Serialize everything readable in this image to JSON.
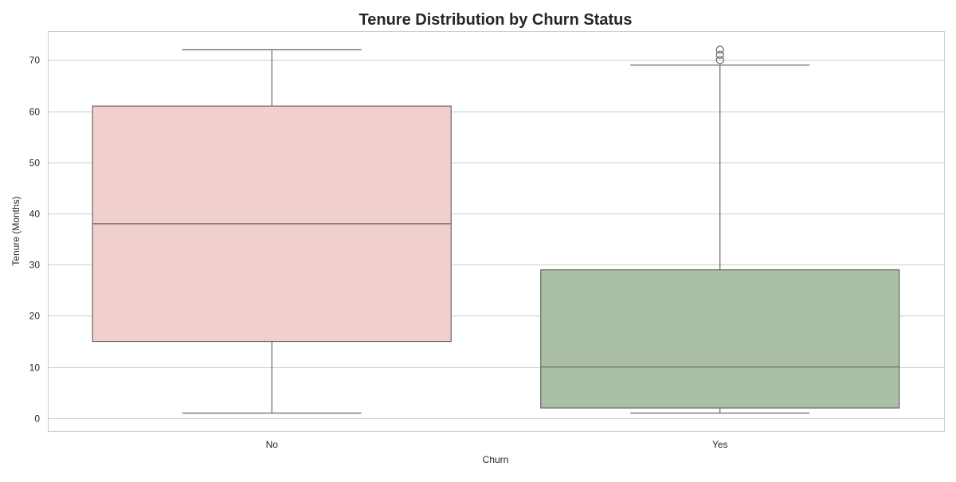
{
  "chart_data": {
    "type": "box",
    "title": "Tenure Distribution by Churn Status",
    "xlabel": "Churn",
    "ylabel": "Tenure (Months)",
    "categories": [
      "No",
      "Yes"
    ],
    "ylim": [
      -2.5,
      75.5
    ],
    "yticks": [
      0,
      10,
      20,
      30,
      40,
      50,
      60,
      70
    ],
    "grid": true,
    "boxes": [
      {
        "category": "No",
        "whisker_low": 1,
        "q1": 15,
        "median": 38,
        "q3": 61,
        "whisker_high": 72,
        "outliers": [],
        "color": "#f1cfcf"
      },
      {
        "category": "Yes",
        "whisker_low": 1,
        "q1": 2,
        "median": 10,
        "q3": 29,
        "whisker_high": 69,
        "outliers": [
          70,
          71,
          72
        ],
        "color": "#aabfa3"
      }
    ],
    "line_color": "#666666",
    "grid_color": "#cccccc"
  }
}
